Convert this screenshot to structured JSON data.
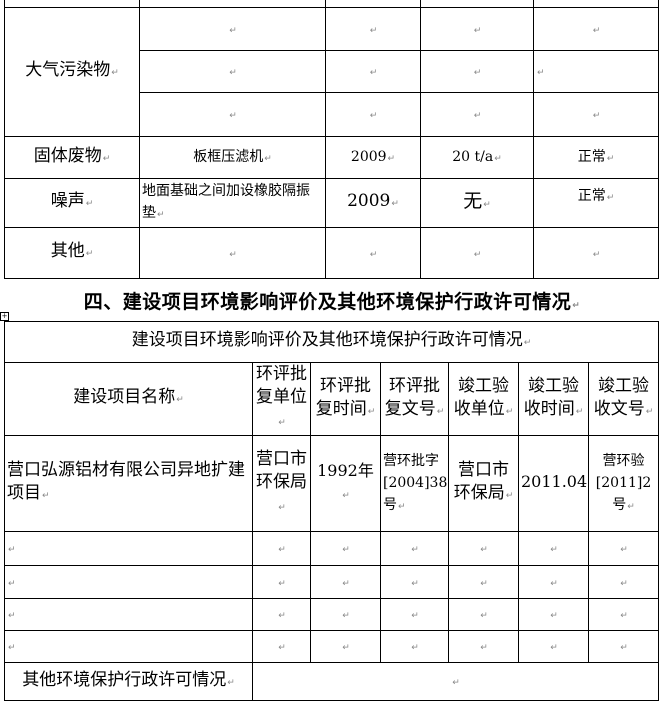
{
  "table_emissions": {
    "rows": [
      {
        "category": "大气污染物",
        "subrows": [
          [
            "",
            "",
            "",
            ""
          ],
          [
            "",
            "",
            "",
            ""
          ],
          [
            "",
            "",
            "",
            ""
          ]
        ]
      },
      {
        "category": "固体废物",
        "cells": [
          "板框压滤机",
          "2009",
          "20 t/a",
          "正常"
        ]
      },
      {
        "category": "噪声",
        "cells": [
          "地面基础之间加设橡胶隔振垫",
          "2009",
          "无",
          "正常"
        ]
      },
      {
        "category": "其他",
        "cells": [
          "",
          "",
          "",
          ""
        ]
      }
    ]
  },
  "section_heading": "四、建设项目环境影响评价及其他环境保护行政许可情况",
  "table_permits": {
    "title": "建设项目环境影响评价及其他环境保护行政许可情况",
    "headers": [
      "建设项目名称",
      "环评批复单位",
      "环评批复时间",
      "环评批复文号",
      "竣工验收单位",
      "竣工验收时间",
      "竣工验收文号"
    ],
    "rows": [
      [
        "营口弘源铝材有限公司异地扩建项目",
        "营口市环保局",
        "1992年",
        "营环批字[2004]38号",
        "营口市环保局",
        "2011.04",
        "营环验[2011]2号"
      ],
      [
        "",
        "",
        "",
        "",
        "",
        "",
        ""
      ],
      [
        "",
        "",
        "",
        "",
        "",
        "",
        ""
      ],
      [
        "",
        "",
        "",
        "",
        "",
        "",
        ""
      ],
      [
        "",
        "",
        "",
        "",
        "",
        "",
        ""
      ]
    ],
    "other_label": "其他环境保护行政许可情况",
    "other_value": ""
  }
}
